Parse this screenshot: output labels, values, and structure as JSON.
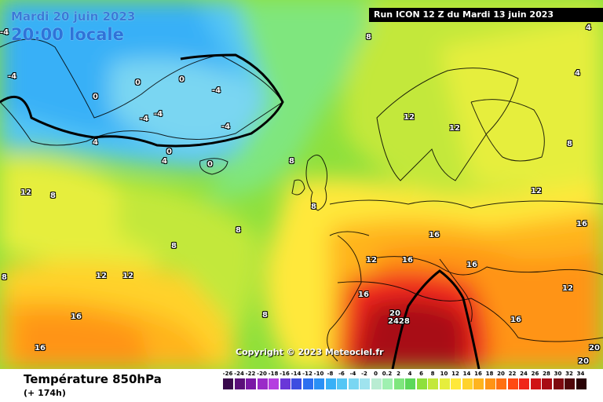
{
  "header": {
    "date": "Mardi 20 juin 2023",
    "time": "20:00 locale",
    "run": "Run ICON 12 Z du Mardi 13 juin 2023"
  },
  "copyright": "Copyright © 2023 Meteociel.fr",
  "footer": {
    "parameter": "Température 850hPa",
    "lead": "(+ 174h)"
  },
  "scale": {
    "labels": [
      "-26",
      "-24",
      "-22",
      "-20",
      "-18",
      "-16",
      "-14",
      "-12",
      "-10",
      "-8",
      "-6",
      "-4",
      "-2",
      "0",
      "0.2",
      "2",
      "4",
      "6",
      "8",
      "10",
      "12",
      "14",
      "16",
      "18",
      "20",
      "22",
      "24",
      "26",
      "28",
      "30",
      "32",
      "34"
    ],
    "colors": [
      "#3a0a4d",
      "#5b0f7a",
      "#7a18a6",
      "#9a2bc8",
      "#b53fe0",
      "#6a37d8",
      "#3d4de0",
      "#2c6ff0",
      "#2a90f5",
      "#38b0f7",
      "#55c6f5",
      "#7ad6f2",
      "#9fe3ee",
      "#b9ecd2",
      "#9ff0b0",
      "#7fe67e",
      "#5cd85a",
      "#8ee03c",
      "#c3e83a",
      "#e6ee3c",
      "#ffe83a",
      "#ffd22c",
      "#ffb41e",
      "#ff9416",
      "#ff7012",
      "#ff4a12",
      "#f0261a",
      "#d01216",
      "#a80c14",
      "#7e0a10",
      "#50060a",
      "#2a0206"
    ]
  },
  "map_labels": [
    {
      "text": "-4"
    },
    {
      "text": "-4"
    },
    {
      "text": "-4"
    },
    {
      "text": "0"
    },
    {
      "text": "0"
    },
    {
      "text": "0"
    },
    {
      "text": "0"
    },
    {
      "text": "-4"
    },
    {
      "text": "-4"
    },
    {
      "text": "-4"
    },
    {
      "text": "4"
    },
    {
      "text": "0"
    },
    {
      "text": "4"
    },
    {
      "text": "8"
    },
    {
      "text": "8"
    },
    {
      "text": "8"
    },
    {
      "text": "8"
    },
    {
      "text": "8"
    },
    {
      "text": "8"
    },
    {
      "text": "8"
    },
    {
      "text": "8"
    },
    {
      "text": "12"
    },
    {
      "text": "12"
    },
    {
      "text": "12"
    },
    {
      "text": "12"
    },
    {
      "text": "12"
    },
    {
      "text": "12"
    },
    {
      "text": "12"
    },
    {
      "text": "12"
    },
    {
      "text": "16"
    },
    {
      "text": "16"
    },
    {
      "text": "16"
    },
    {
      "text": "16"
    },
    {
      "text": "16"
    },
    {
      "text": "16"
    },
    {
      "text": "16"
    },
    {
      "text": "16"
    },
    {
      "text": "20"
    },
    {
      "text": "20"
    },
    {
      "text": "20"
    },
    {
      "text": "2428"
    },
    {
      "text": "4"
    },
    {
      "text": "4"
    },
    {
      "text": "8"
    }
  ]
}
